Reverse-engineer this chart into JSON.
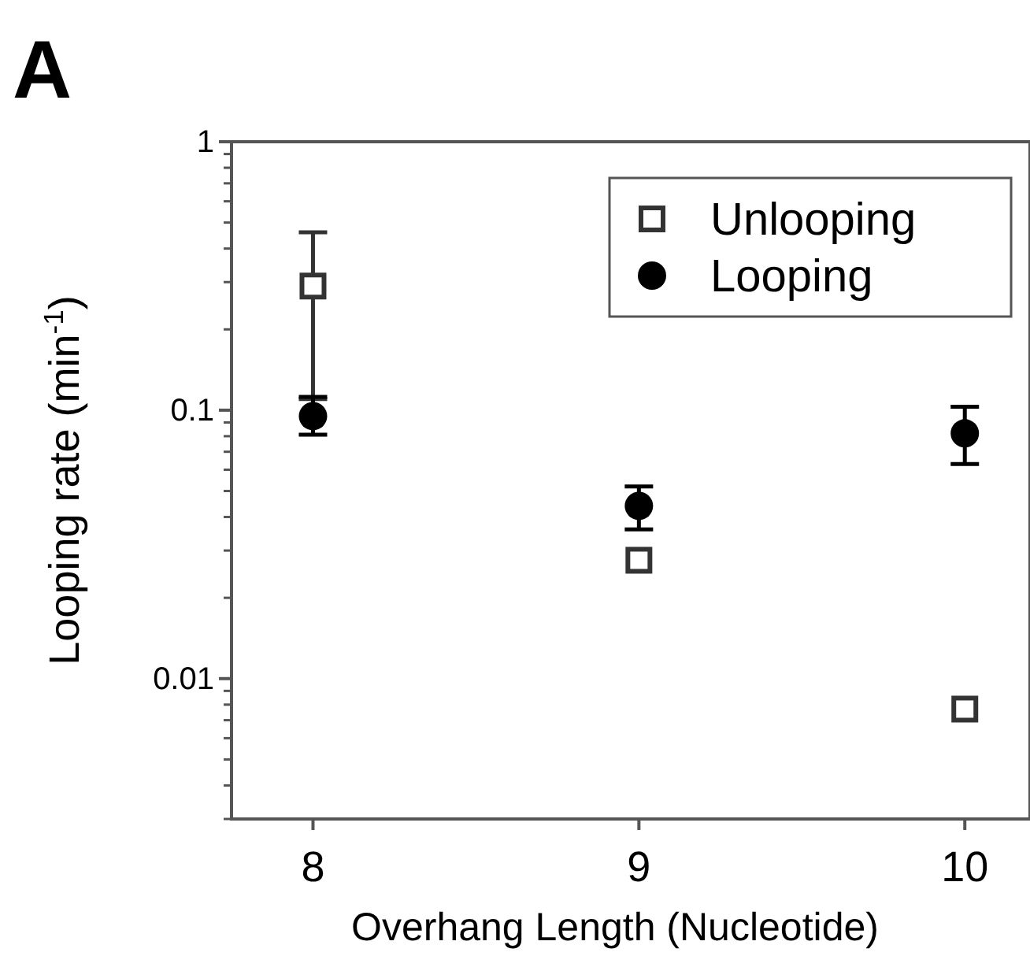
{
  "chart_data": {
    "type": "scatter",
    "title": "A",
    "xlabel": "Overhang Length (Nucleotide)",
    "ylabel": "Looping rate (min$^{-1}$)",
    "x": [
      8,
      9,
      10
    ],
    "xlim": [
      7.75,
      10.2
    ],
    "xticks": [
      8,
      9,
      10
    ],
    "ylim": [
      0.003,
      1
    ],
    "yticks": [
      {
        "value": 0.01,
        "label": "0.01"
      },
      {
        "value": 0.1,
        "label": "0.1"
      },
      {
        "value": 1,
        "label": "1"
      }
    ],
    "log": "y",
    "legend": "top right",
    "series": [
      {
        "name": "Unlooping",
        "color": "#333333",
        "marker": "square",
        "values": [
          0.29,
          0.0276,
          0.0077
        ],
        "errors": [
          [
            0.11,
            0.46
          ],
          null,
          null
        ]
      },
      {
        "name": "Looping",
        "color": "#000000",
        "marker": "circle",
        "values": [
          0.095,
          0.044,
          0.082
        ],
        "errors": [
          [
            0.081,
            0.112
          ],
          [
            0.036,
            0.052
          ],
          [
            0.063,
            0.103
          ]
        ]
      }
    ]
  }
}
